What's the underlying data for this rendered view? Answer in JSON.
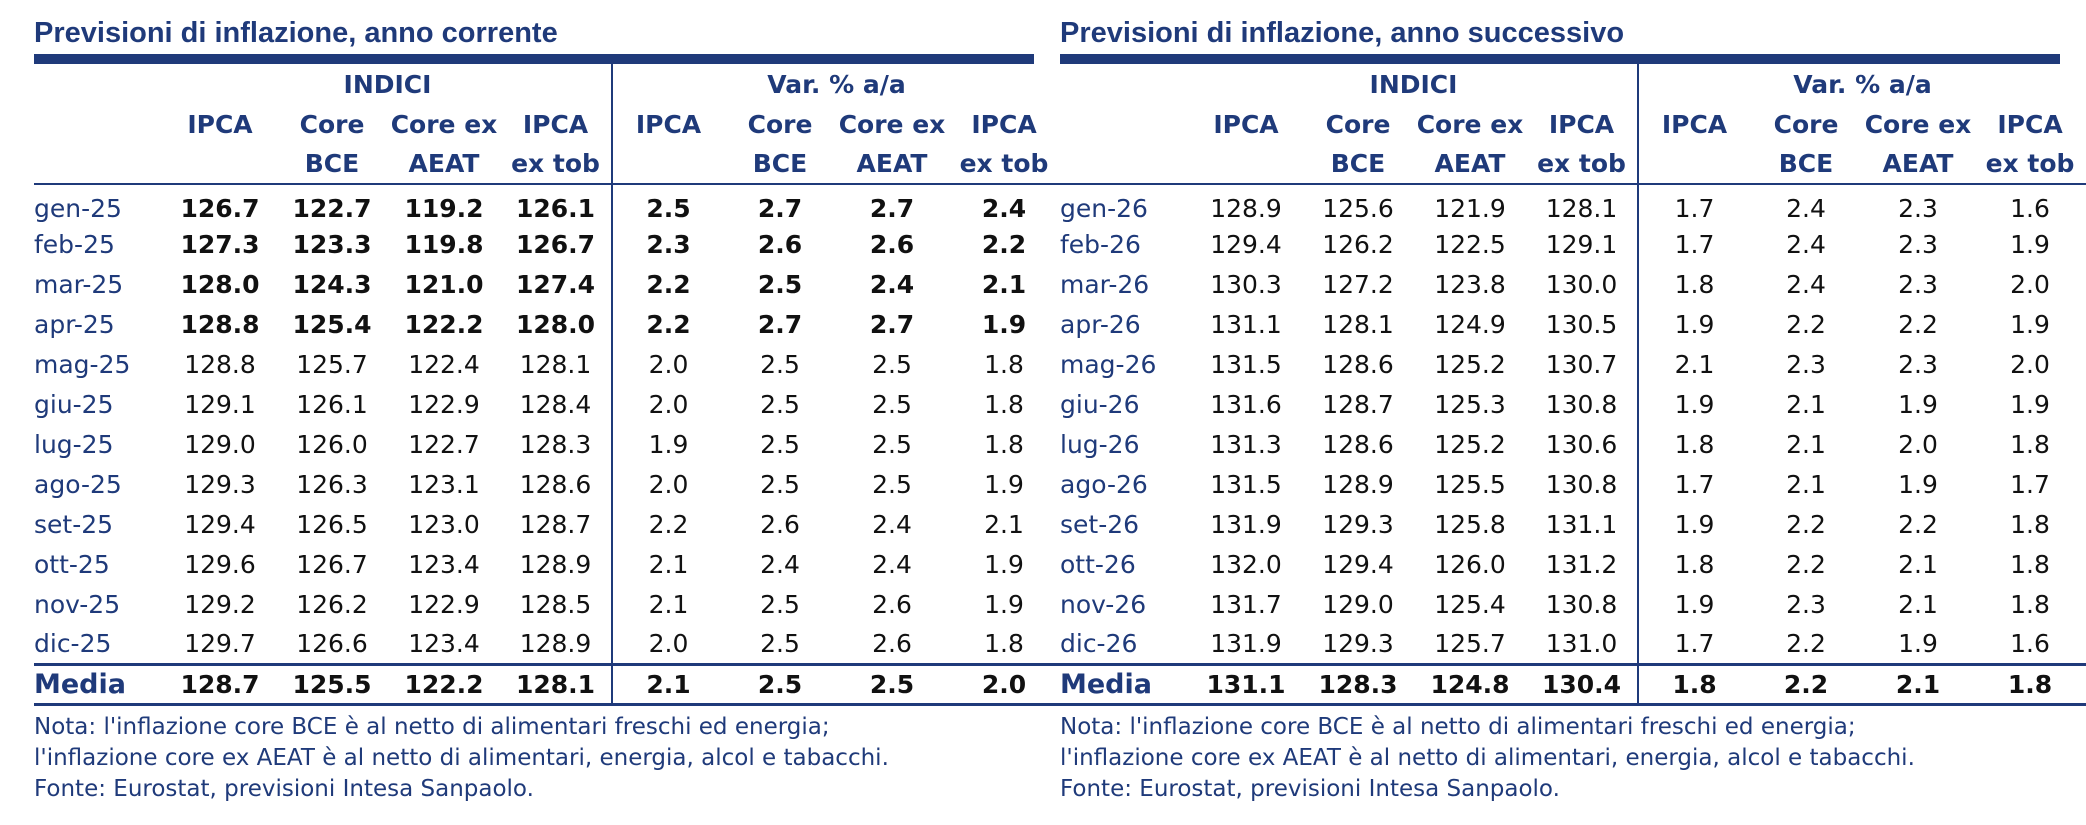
{
  "left": {
    "title": "Previsioni di inflazione, anno corrente",
    "group_indici": "INDICI",
    "group_var": "Var. % a/a",
    "headers_row1": [
      "IPCA",
      "Core",
      "Core ex",
      "IPCA",
      "IPCA",
      "Core",
      "Core ex",
      "IPCA"
    ],
    "headers_row2": [
      "",
      "BCE",
      "AEAT",
      "ex tob",
      "",
      "BCE",
      "AEAT",
      "ex tob"
    ],
    "rows": [
      {
        "month": "gen-25",
        "v": [
          "126.7",
          "122.7",
          "119.2",
          "126.1",
          "2.5",
          "2.7",
          "2.7",
          "2.4"
        ]
      },
      {
        "month": "feb-25",
        "v": [
          "127.3",
          "123.3",
          "119.8",
          "126.7",
          "2.3",
          "2.6",
          "2.6",
          "2.2"
        ]
      },
      {
        "month": "mar-25",
        "v": [
          "128.0",
          "124.3",
          "121.0",
          "127.4",
          "2.2",
          "2.5",
          "2.4",
          "2.1"
        ]
      },
      {
        "month": "apr-25",
        "v": [
          "128.8",
          "125.4",
          "122.2",
          "128.0",
          "2.2",
          "2.7",
          "2.7",
          "1.9"
        ]
      },
      {
        "month": "mag-25",
        "v": [
          "128.8",
          "125.7",
          "122.4",
          "128.1",
          "2.0",
          "2.5",
          "2.5",
          "1.8"
        ]
      },
      {
        "month": "giu-25",
        "v": [
          "129.1",
          "126.1",
          "122.9",
          "128.4",
          "2.0",
          "2.5",
          "2.5",
          "1.8"
        ]
      },
      {
        "month": "lug-25",
        "v": [
          "129.0",
          "126.0",
          "122.7",
          "128.3",
          "1.9",
          "2.5",
          "2.5",
          "1.8"
        ]
      },
      {
        "month": "ago-25",
        "v": [
          "129.3",
          "126.3",
          "123.1",
          "128.6",
          "2.0",
          "2.5",
          "2.5",
          "1.9"
        ]
      },
      {
        "month": "set-25",
        "v": [
          "129.4",
          "126.5",
          "123.0",
          "128.7",
          "2.2",
          "2.6",
          "2.4",
          "2.1"
        ]
      },
      {
        "month": "ott-25",
        "v": [
          "129.6",
          "126.7",
          "123.4",
          "128.9",
          "2.1",
          "2.4",
          "2.4",
          "1.9"
        ]
      },
      {
        "month": "nov-25",
        "v": [
          "129.2",
          "126.2",
          "122.9",
          "128.5",
          "2.1",
          "2.5",
          "2.6",
          "1.9"
        ]
      },
      {
        "month": "dic-25",
        "v": [
          "129.7",
          "126.6",
          "123.4",
          "128.9",
          "2.0",
          "2.5",
          "2.6",
          "1.8"
        ]
      }
    ],
    "media": {
      "label": "Media",
      "v": [
        "128.7",
        "125.5",
        "122.2",
        "128.1",
        "2.1",
        "2.5",
        "2.5",
        "2.0"
      ]
    },
    "notes": [
      "Nota: l'inflazione core BCE è al netto di alimentari freschi ed energia;",
      "l'inflazione core ex AEAT è al netto di alimentari, energia, alcol e tabacchi.",
      "Fonte: Eurostat, previsioni Intesa Sanpaolo."
    ]
  },
  "right": {
    "title": "Previsioni di inflazione, anno successivo",
    "group_indici": "INDICI",
    "group_var": "Var. % a/a",
    "headers_row1": [
      "IPCA",
      "Core",
      "Core ex",
      "IPCA",
      "IPCA",
      "Core",
      "Core ex",
      "IPCA"
    ],
    "headers_row2": [
      "",
      "BCE",
      "AEAT",
      "ex tob",
      "",
      "BCE",
      "AEAT",
      "ex tob"
    ],
    "rows": [
      {
        "month": "gen-26",
        "v": [
          "128.9",
          "125.6",
          "121.9",
          "128.1",
          "1.7",
          "2.4",
          "2.3",
          "1.6"
        ]
      },
      {
        "month": "feb-26",
        "v": [
          "129.4",
          "126.2",
          "122.5",
          "129.1",
          "1.7",
          "2.4",
          "2.3",
          "1.9"
        ]
      },
      {
        "month": "mar-26",
        "v": [
          "130.3",
          "127.2",
          "123.8",
          "130.0",
          "1.8",
          "2.4",
          "2.3",
          "2.0"
        ]
      },
      {
        "month": "apr-26",
        "v": [
          "131.1",
          "128.1",
          "124.9",
          "130.5",
          "1.9",
          "2.2",
          "2.2",
          "1.9"
        ]
      },
      {
        "month": "mag-26",
        "v": [
          "131.5",
          "128.6",
          "125.2",
          "130.7",
          "2.1",
          "2.3",
          "2.3",
          "2.0"
        ]
      },
      {
        "month": "giu-26",
        "v": [
          "131.6",
          "128.7",
          "125.3",
          "130.8",
          "1.9",
          "2.1",
          "1.9",
          "1.9"
        ]
      },
      {
        "month": "lug-26",
        "v": [
          "131.3",
          "128.6",
          "125.2",
          "130.6",
          "1.8",
          "2.1",
          "2.0",
          "1.8"
        ]
      },
      {
        "month": "ago-26",
        "v": [
          "131.5",
          "128.9",
          "125.5",
          "130.8",
          "1.7",
          "2.1",
          "1.9",
          "1.7"
        ]
      },
      {
        "month": "set-26",
        "v": [
          "131.9",
          "129.3",
          "125.8",
          "131.1",
          "1.9",
          "2.2",
          "2.2",
          "1.8"
        ]
      },
      {
        "month": "ott-26",
        "v": [
          "132.0",
          "129.4",
          "126.0",
          "131.2",
          "1.8",
          "2.2",
          "2.1",
          "1.8"
        ]
      },
      {
        "month": "nov-26",
        "v": [
          "131.7",
          "129.0",
          "125.4",
          "130.8",
          "1.9",
          "2.3",
          "2.1",
          "1.8"
        ]
      },
      {
        "month": "dic-26",
        "v": [
          "131.9",
          "129.3",
          "125.7",
          "131.0",
          "1.7",
          "2.2",
          "1.9",
          "1.6"
        ]
      }
    ],
    "media": {
      "label": "Media",
      "v": [
        "131.1",
        "128.3",
        "124.8",
        "130.4",
        "1.8",
        "2.2",
        "2.1",
        "1.8"
      ]
    },
    "notes": [
      "Nota: l'inflazione core BCE è al netto di alimentari freschi ed energia;",
      "l'inflazione core ex AEAT è al netto di alimentari, energia, alcol e tabacchi.",
      "Fonte: Eurostat, previsioni Intesa Sanpaolo."
    ]
  },
  "colors": {
    "accent": "#1f3a7a",
    "text": "#111111"
  }
}
